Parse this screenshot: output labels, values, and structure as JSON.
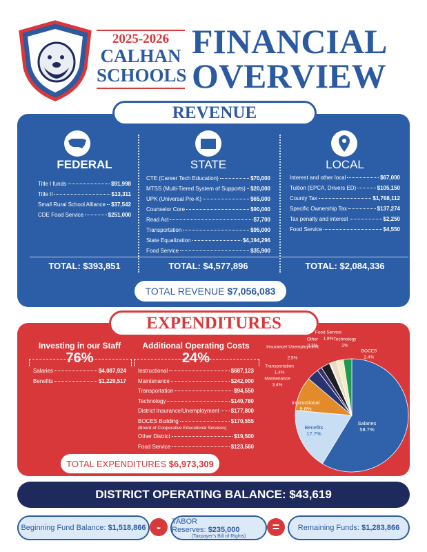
{
  "header": {
    "years": "2025-2026",
    "line1": "CALHAN",
    "line2": "SCHOOLS",
    "title1": "FINANCIAL",
    "title2": "OVERVIEW"
  },
  "revenue": {
    "title": "REVENUE",
    "columns": [
      {
        "heading": "FEDERAL",
        "items": [
          {
            "label": "Title I funds",
            "amount": "$91,998"
          },
          {
            "label": "Title II",
            "amount": "$13,311"
          },
          {
            "label": "Small Rural School Alliance",
            "amount": "$37,542"
          },
          {
            "label": "CDE Food Service",
            "amount": "$251,000"
          }
        ],
        "total": "TOTAL: $393,851"
      },
      {
        "heading": "STATE",
        "items": [
          {
            "label": "CTE (Career Tech Education)",
            "amount": "$70,000"
          },
          {
            "label": "MTSS (Multi-Tiered System of Supports)",
            "amount": "$20,000"
          },
          {
            "label": "UPK (Universal Pre-K)",
            "amount": "$65,000"
          },
          {
            "label": "Counselor Core",
            "amount": "$90,000"
          },
          {
            "label": "Read Act",
            "amount": "$7,700"
          },
          {
            "label": "Transportation",
            "amount": "$95,000"
          },
          {
            "label": "State Equalization",
            "amount": "$4,194,296"
          },
          {
            "label": "Food Service",
            "amount": "$35,900"
          }
        ],
        "total": "TOTAL: $4,577,896"
      },
      {
        "heading": "LOCAL",
        "items": [
          {
            "label": "Interest and other local",
            "amount": "$67,000"
          },
          {
            "label": "Tuition (EPCA, Drivers ED)",
            "amount": "$105,150"
          },
          {
            "label": "County Tax",
            "amount": "$1,768,112"
          },
          {
            "label": "Specific Ownership Tax",
            "amount": "$137,274"
          },
          {
            "label": "Tax penalty and interest",
            "amount": "$2,250"
          },
          {
            "label": "Food Service",
            "amount": "$4,550"
          }
        ],
        "total": "TOTAL: $2,084,336"
      }
    ],
    "total_label": "TOTAL REVENUE",
    "total_amount": "$7,056,083"
  },
  "expenditures": {
    "title": "EXPENDITURES",
    "staff": {
      "heading": "Investing in our Staff",
      "percent": "76%",
      "items": [
        {
          "label": "Salaries",
          "amount": "$4,087,924"
        },
        {
          "label": "Benefits",
          "amount": "$1,229,517"
        }
      ]
    },
    "operating": {
      "heading": "Additional Operating Costs",
      "percent": "24%",
      "items": [
        {
          "label": "Instructional",
          "amount": "$687,123"
        },
        {
          "label": "Maintenance",
          "amount": "$242,000"
        },
        {
          "label": "Transportation",
          "amount": "$94,550"
        },
        {
          "label": "Technology",
          "amount": "$140,780"
        },
        {
          "label": "District Insurance/Unemployment",
          "amount": "$177,800"
        },
        {
          "label": "BOCES Building",
          "amount": "$170,555",
          "note": "(Board of Cooperative Educational Services)"
        },
        {
          "label": "Other District",
          "amount": "$19,500"
        },
        {
          "label": "Food Service",
          "amount": "$123,560"
        }
      ]
    },
    "total_label": "TOTAL EXPENDITURES",
    "total_amount": "$6,973,309"
  },
  "chart_data": {
    "type": "pie",
    "categories": [
      "Salaries",
      "Benefits",
      "Instructional",
      "Maintenance",
      "Transportation",
      "Insurance/ Unemployment",
      "Other",
      "Food Service",
      "Technology",
      "BOCES"
    ],
    "values": [
      58.7,
      17.7,
      9.8,
      3.4,
      1.4,
      2.5,
      0.3,
      1.8,
      2,
      2.4
    ],
    "value_labels": [
      "58.7%",
      "17.7%",
      "9.8%",
      "3.4%",
      "1.4%",
      "2.5%",
      "0.3%",
      "1.8%",
      "2%",
      "2.4%"
    ],
    "colors": [
      "#2f62aa",
      "#c8def3",
      "#e38a2a",
      "#27346f",
      "#3c2f6e",
      "#1d1d24",
      "#f2f2f2",
      "#e9dcc0",
      "#f4ecc6",
      "#1f9a4c"
    ]
  },
  "balance": {
    "label": "DISTRICT OPERATING BALANCE:",
    "amount": "$43,619"
  },
  "funds": {
    "beginning": {
      "label": "Beginning Fund Balance:",
      "amount": "$1,518,866"
    },
    "minus": "-",
    "reserves": {
      "label": "TABOR Reserves:",
      "amount": "$235,000",
      "note": "(Taxpayer's Bill of Rights)"
    },
    "equals": "=",
    "remaining": {
      "label": "Remaining Funds:",
      "amount": "$1,283,866"
    }
  }
}
